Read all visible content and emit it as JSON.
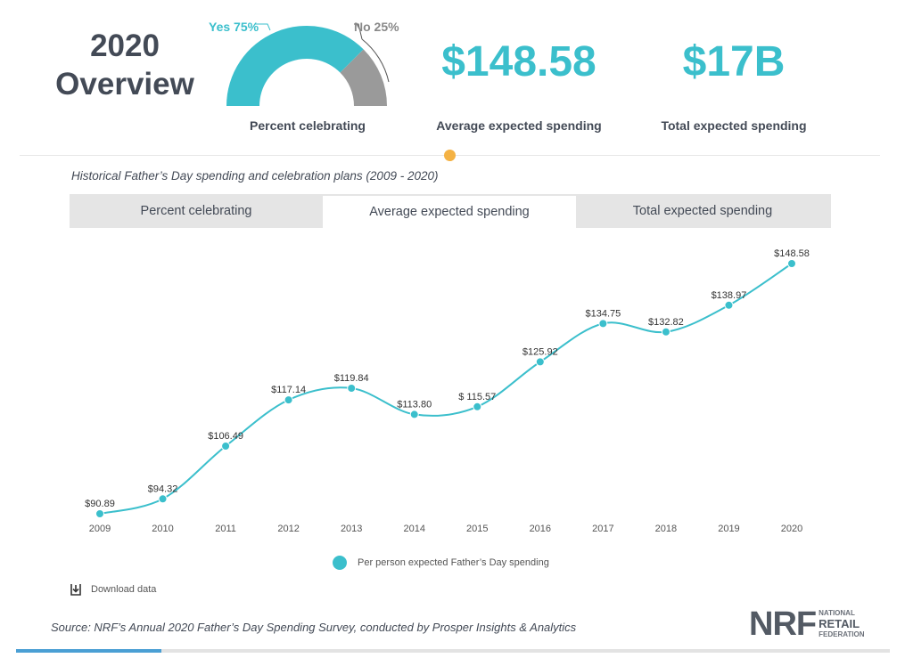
{
  "overview": {
    "title": "2020 Overview"
  },
  "gauge": {
    "yes_label": "Yes 75%",
    "no_label": "No 25%",
    "yes_fraction": 0.75,
    "caption": "Percent celebrating"
  },
  "stats": [
    {
      "value": "$148.58",
      "label": "Average expected spending"
    },
    {
      "value": "$17B",
      "label": "Total expected spending"
    }
  ],
  "chart_subtitle": "Historical Father’s Day spending and celebration plans (2009 - 2020)",
  "tabs": [
    {
      "label": "Percent celebrating",
      "active": false
    },
    {
      "label": "Average expected spending",
      "active": true
    },
    {
      "label": "Total expected spending",
      "active": false
    }
  ],
  "chart_data": {
    "type": "line",
    "title": "",
    "xlabel": "",
    "ylabel": "",
    "x": [
      "2009",
      "2010",
      "2011",
      "2012",
      "2013",
      "2014",
      "2015",
      "2016",
      "2017",
      "2018",
      "2019",
      "2020"
    ],
    "series": [
      {
        "name": "Per person expected Father’s Day spending",
        "values": [
          90.89,
          94.32,
          106.49,
          117.14,
          119.84,
          113.8,
          115.57,
          125.92,
          134.75,
          132.82,
          138.97,
          148.58
        ],
        "labels": [
          "$90.89",
          "$94.32",
          "$106.49",
          "$117.14",
          "$119.84",
          "$113.80",
          "$ 115.57",
          "$125.92",
          "$134.75",
          "$132.82",
          "$138.97",
          "$148.58"
        ]
      }
    ],
    "ylim": [
      90.89,
      148.58
    ],
    "grid": false,
    "legend": "bottom-center"
  },
  "legend_label": "Per person expected Father’s Day spending",
  "download_label": "Download data",
  "source": "Source: NRF’s Annual 2020 Father’s Day Spending Survey, conducted by Prosper Insights & Analytics",
  "logo": {
    "letters": "NRF",
    "line1": "NATIONAL",
    "line2": "RETAIL",
    "line3": "FEDERATION"
  },
  "colors": {
    "accent": "#3bbfcc",
    "gauge_no": "#9a9a9a",
    "indicator": "#f4b244",
    "text": "#434a56"
  },
  "progress": 0.166
}
